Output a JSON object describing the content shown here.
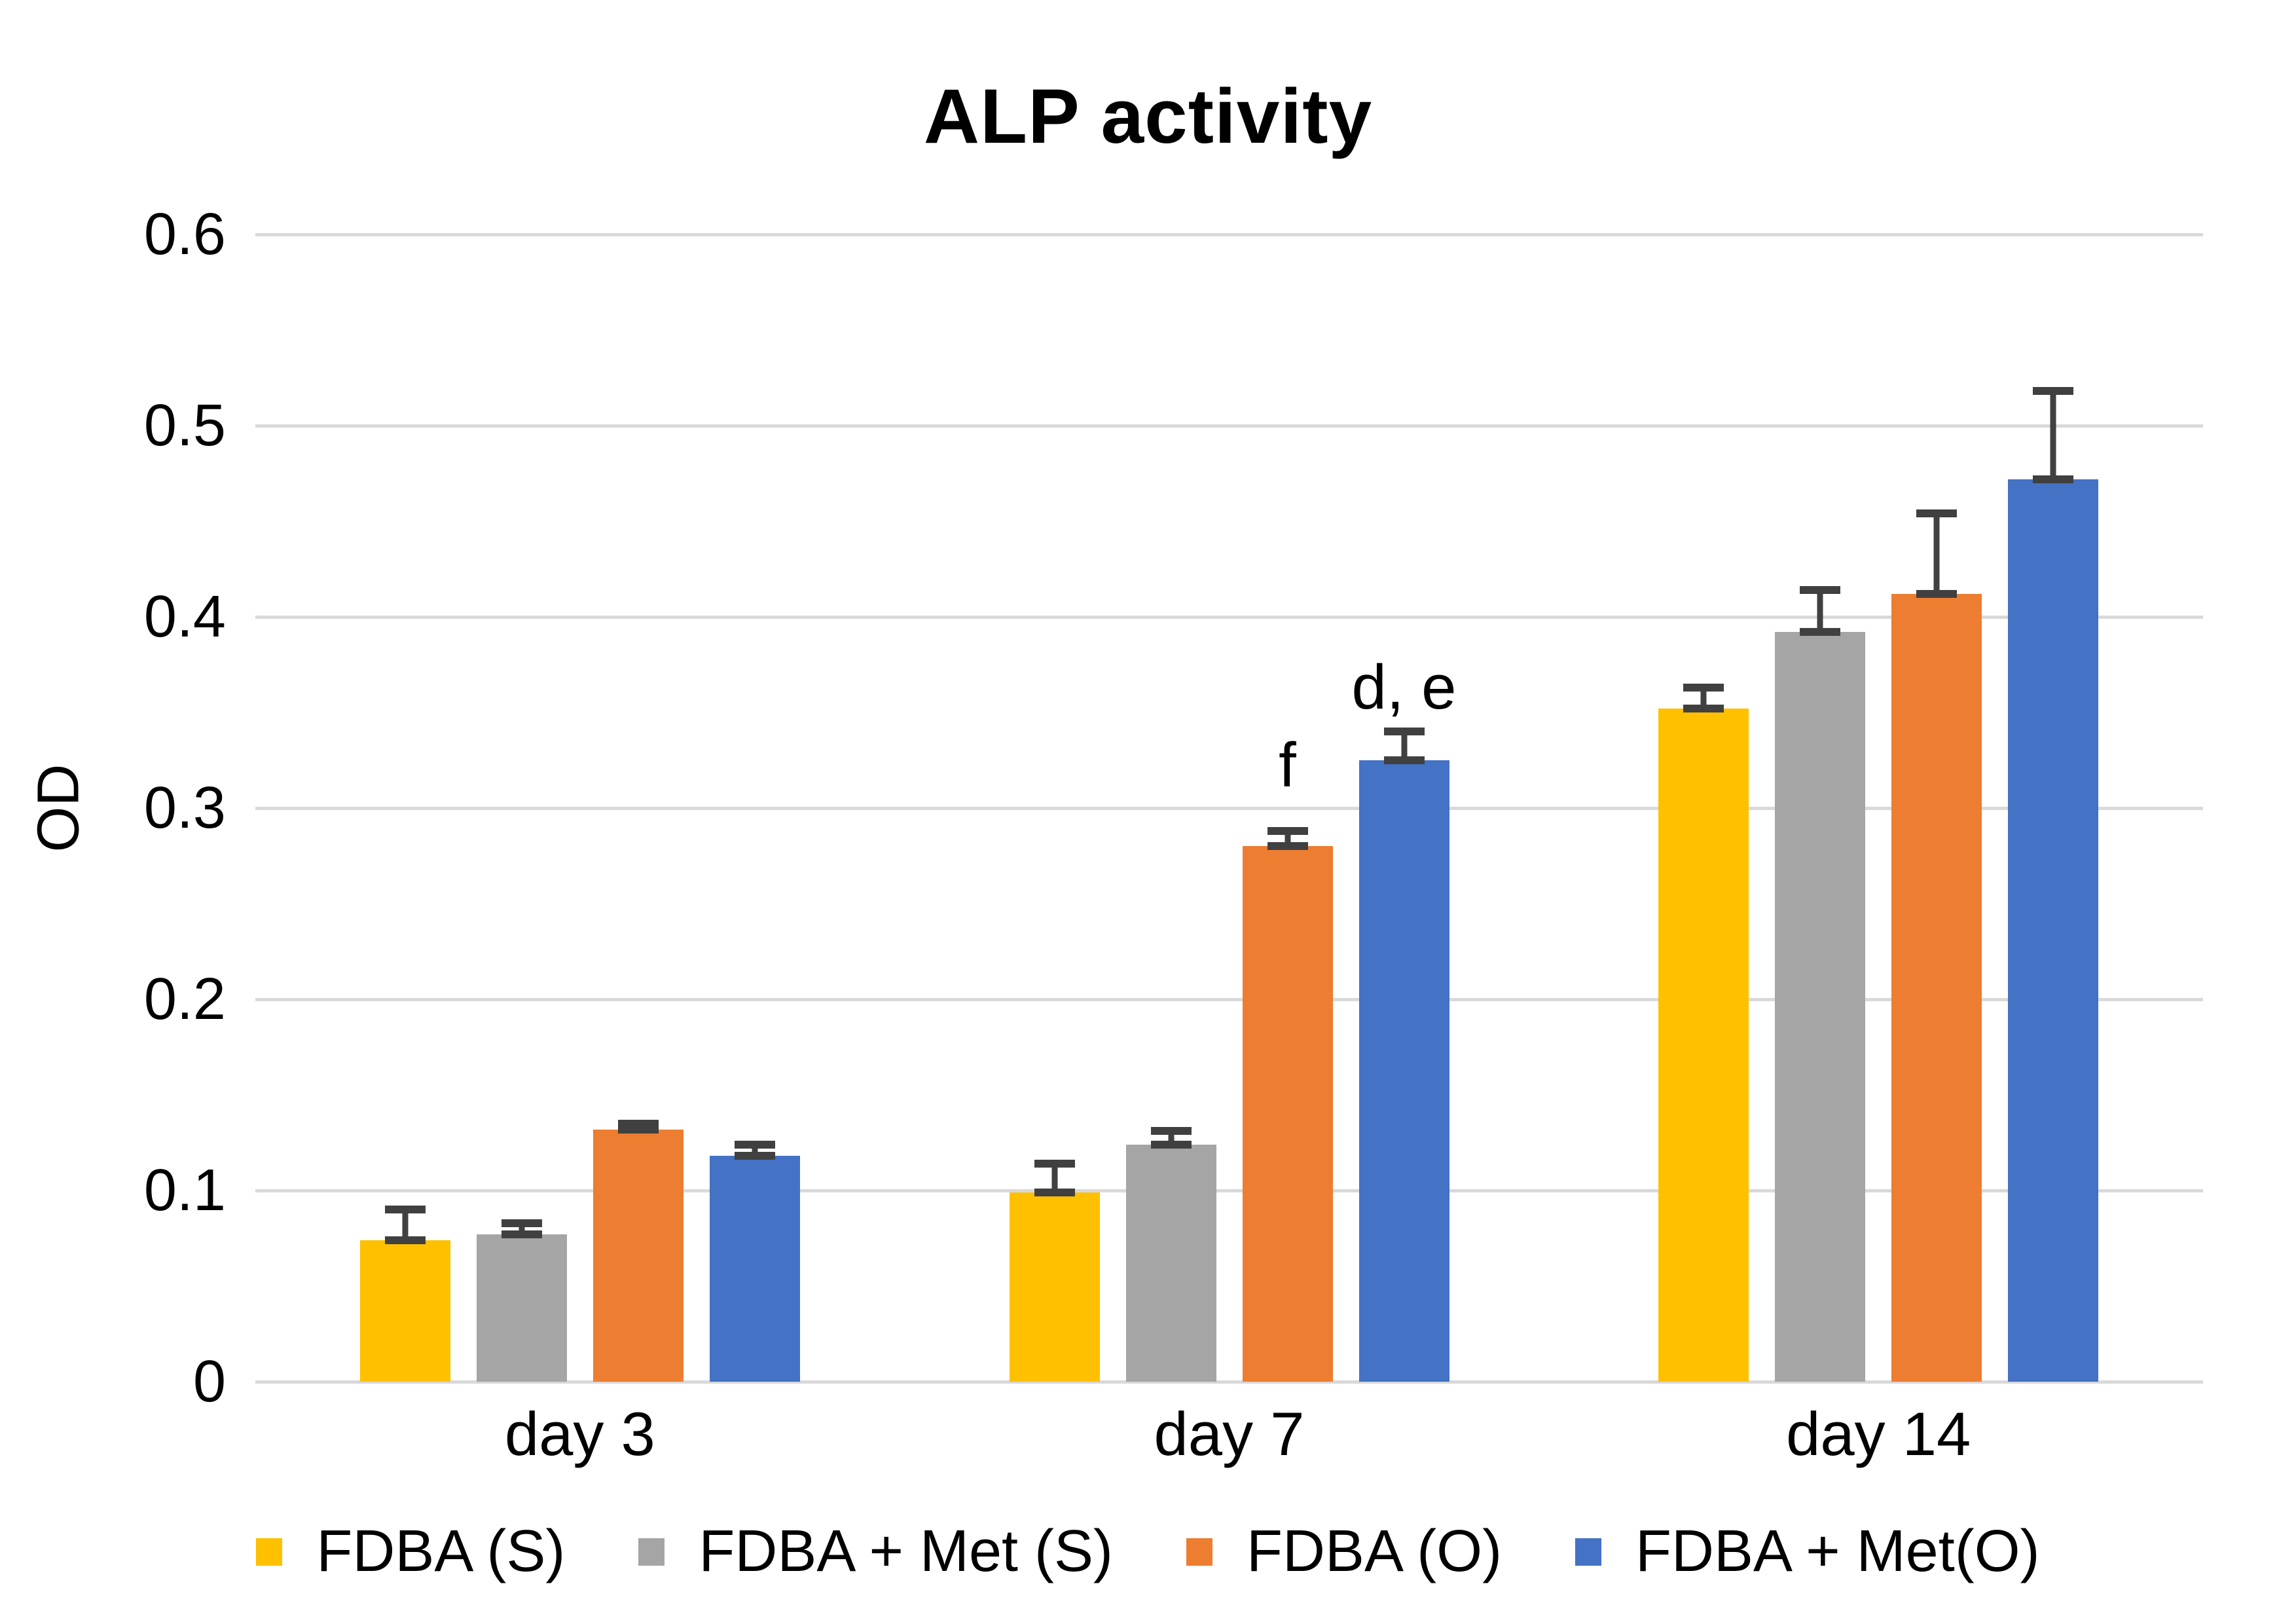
{
  "title": "ALP activity",
  "y_axis": {
    "label": "OD",
    "ticks": [
      "0",
      "0.1",
      "0.2",
      "0.3",
      "0.4",
      "0.5",
      "0.6"
    ]
  },
  "chart_data": {
    "type": "bar",
    "title": "ALP activity",
    "xlabel": "",
    "ylabel": "OD",
    "ylim": [
      0,
      0.6
    ],
    "ytick_step": 0.1,
    "grid": true,
    "legend_position": "bottom",
    "categories": [
      "day 3",
      "day 7",
      "day 14"
    ],
    "series": [
      {
        "name": "FDBA (S)",
        "color": "#FFC000",
        "values": [
          0.074,
          0.099,
          0.352
        ],
        "errors": [
          0.016,
          0.015,
          0.011
        ]
      },
      {
        "name": "FDBA + Met (S)",
        "color": "#A5A5A5",
        "values": [
          0.077,
          0.124,
          0.392
        ],
        "errors": [
          0.006,
          0.007,
          0.022
        ]
      },
      {
        "name": "FDBA (O)",
        "color": "#ED7D31",
        "values": [
          0.132,
          0.28,
          0.412
        ],
        "errors": [
          0.003,
          0.008,
          0.042
        ]
      },
      {
        "name": "FDBA + Met(O)",
        "color": "#4472C4",
        "values": [
          0.118,
          0.325,
          0.472
        ],
        "errors": [
          0.006,
          0.015,
          0.046
        ]
      }
    ],
    "annotations": [
      {
        "text": "f",
        "category_index": 1,
        "series_index": 2,
        "y_value": 0.305
      },
      {
        "text": "d, e",
        "category_index": 1,
        "series_index": 3,
        "y_value": 0.346
      }
    ]
  },
  "colors": {
    "gridline": "#d9d9d9",
    "error_bar": "#404040",
    "background": "#ffffff",
    "text": "#000000"
  }
}
